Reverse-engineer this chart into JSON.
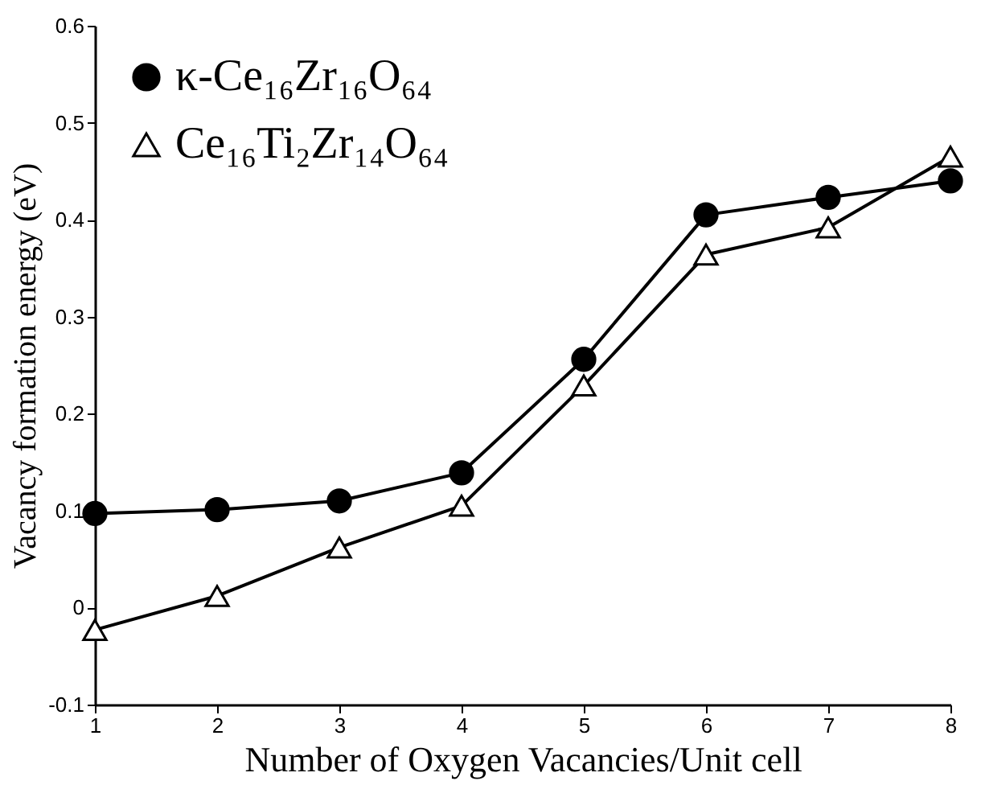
{
  "chart_data": {
    "type": "line",
    "xlabel": "Number of Oxygen Vacancies/Unit cell",
    "ylabel": "Vacancy formation energy (eV)",
    "x": [
      1,
      2,
      3,
      4,
      5,
      6,
      7,
      8
    ],
    "xlim": [
      1,
      8
    ],
    "xticks": [
      1,
      2,
      3,
      4,
      5,
      6,
      7,
      8
    ],
    "ylim": [
      -0.1,
      0.6
    ],
    "yticks": [
      -0.1,
      0,
      0.1,
      0.2,
      0.3,
      0.4,
      0.5,
      0.6
    ],
    "grid": false,
    "legend": "top left",
    "series": [
      {
        "name": "κ-Ce₁₆Zr₁₆O₆₄",
        "color": "#000000",
        "marker": "circle",
        "values": [
          0.097,
          0.101,
          0.11,
          0.139,
          0.256,
          0.405,
          0.423,
          0.44
        ]
      },
      {
        "name": "Ce₁₆Ti₂Zr₁₄O₆₄",
        "color": "#000000",
        "marker": "triangle",
        "values": [
          -0.023,
          0.012,
          0.062,
          0.105,
          0.229,
          0.364,
          0.392,
          0.465
        ]
      }
    ]
  }
}
